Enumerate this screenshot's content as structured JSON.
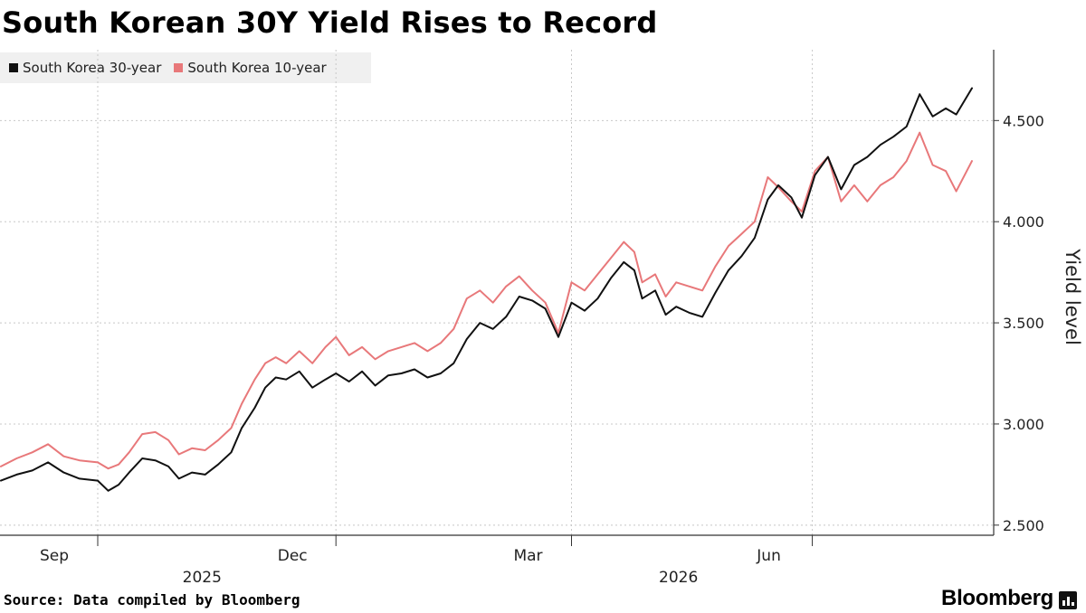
{
  "title": "South Korean 30Y Yield Rises to Record",
  "source": "Source: Data compiled by Bloomberg",
  "brand": "Bloomberg",
  "colors": {
    "s30": "#111111",
    "s10": "#e8787a",
    "grid": "#c8c8c8",
    "axis": "#333333"
  },
  "chart_data": {
    "type": "line",
    "title": "South Korean 30Y Yield Rises to Record",
    "ylabel": "Yield level",
    "xlabel": "",
    "ylim": [
      2.45,
      4.85
    ],
    "yticks": [
      2.5,
      3.0,
      3.5,
      4.0,
      4.5
    ],
    "ytick_labels": [
      "2.500",
      "3.000",
      "3.500",
      "4.000",
      "4.500"
    ],
    "xlim": [
      "2025-07-26",
      "2026-08-01"
    ],
    "month_ticks": [
      "2025-09-01",
      "2025-12-01",
      "2026-03-01",
      "2026-06-01"
    ],
    "month_labels": [
      {
        "date": "2025-09-01",
        "label": "Sep"
      },
      {
        "date": "2025-12-01",
        "label": "Dec"
      },
      {
        "date": "2026-03-01",
        "label": "Mar"
      },
      {
        "date": "2026-06-01",
        "label": "Jun"
      }
    ],
    "year_labels": [
      {
        "date": "2025-10-15",
        "label": "2025"
      },
      {
        "date": "2026-04-15",
        "label": "2026"
      }
    ],
    "legend_position": "top-left",
    "grid": true,
    "series": [
      {
        "name": "South Korea 30-year",
        "points": [
          [
            "2025-07-26",
            2.72
          ],
          [
            "2025-08-01",
            2.75
          ],
          [
            "2025-08-07",
            2.77
          ],
          [
            "2025-08-13",
            2.81
          ],
          [
            "2025-08-19",
            2.76
          ],
          [
            "2025-08-25",
            2.73
          ],
          [
            "2025-09-01",
            2.72
          ],
          [
            "2025-09-05",
            2.67
          ],
          [
            "2025-09-09",
            2.7
          ],
          [
            "2025-09-13",
            2.76
          ],
          [
            "2025-09-18",
            2.83
          ],
          [
            "2025-09-23",
            2.82
          ],
          [
            "2025-09-28",
            2.79
          ],
          [
            "2025-10-02",
            2.73
          ],
          [
            "2025-10-07",
            2.76
          ],
          [
            "2025-10-12",
            2.75
          ],
          [
            "2025-10-17",
            2.8
          ],
          [
            "2025-10-22",
            2.86
          ],
          [
            "2025-10-26",
            2.98
          ],
          [
            "2025-10-31",
            3.08
          ],
          [
            "2025-11-04",
            3.18
          ],
          [
            "2025-11-08",
            3.23
          ],
          [
            "2025-11-12",
            3.22
          ],
          [
            "2025-11-17",
            3.26
          ],
          [
            "2025-11-22",
            3.18
          ],
          [
            "2025-11-27",
            3.22
          ],
          [
            "2025-12-01",
            3.25
          ],
          [
            "2025-12-06",
            3.21
          ],
          [
            "2025-12-11",
            3.26
          ],
          [
            "2025-12-16",
            3.19
          ],
          [
            "2025-12-21",
            3.24
          ],
          [
            "2025-12-26",
            3.25
          ],
          [
            "2025-12-31",
            3.27
          ],
          [
            "2026-01-05",
            3.23
          ],
          [
            "2026-01-10",
            3.25
          ],
          [
            "2026-01-15",
            3.3
          ],
          [
            "2026-01-20",
            3.42
          ],
          [
            "2026-01-25",
            3.5
          ],
          [
            "2026-01-30",
            3.47
          ],
          [
            "2026-02-04",
            3.53
          ],
          [
            "2026-02-09",
            3.63
          ],
          [
            "2026-02-14",
            3.61
          ],
          [
            "2026-02-19",
            3.57
          ],
          [
            "2026-02-24",
            3.43
          ],
          [
            "2026-03-01",
            3.6
          ],
          [
            "2026-03-06",
            3.56
          ],
          [
            "2026-03-11",
            3.62
          ],
          [
            "2026-03-16",
            3.72
          ],
          [
            "2026-03-21",
            3.8
          ],
          [
            "2026-03-25",
            3.76
          ],
          [
            "2026-03-28",
            3.62
          ],
          [
            "2026-04-02",
            3.66
          ],
          [
            "2026-04-06",
            3.54
          ],
          [
            "2026-04-10",
            3.58
          ],
          [
            "2026-04-15",
            3.55
          ],
          [
            "2026-04-20",
            3.53
          ],
          [
            "2026-04-25",
            3.65
          ],
          [
            "2026-04-30",
            3.76
          ],
          [
            "2026-05-05",
            3.83
          ],
          [
            "2026-05-10",
            3.92
          ],
          [
            "2026-05-15",
            4.11
          ],
          [
            "2026-05-19",
            4.18
          ],
          [
            "2026-05-24",
            4.12
          ],
          [
            "2026-05-28",
            4.02
          ],
          [
            "2026-06-02",
            4.23
          ],
          [
            "2026-06-07",
            4.32
          ],
          [
            "2026-06-12",
            4.16
          ],
          [
            "2026-06-17",
            4.28
          ],
          [
            "2026-06-22",
            4.32
          ],
          [
            "2026-06-27",
            4.38
          ],
          [
            "2026-07-02",
            4.42
          ],
          [
            "2026-07-07",
            4.47
          ],
          [
            "2026-07-12",
            4.63
          ],
          [
            "2026-07-17",
            4.52
          ],
          [
            "2026-07-22",
            4.56
          ],
          [
            "2026-07-26",
            4.53
          ],
          [
            "2026-08-01",
            4.66
          ]
        ]
      },
      {
        "name": "South Korea 10-year",
        "points": [
          [
            "2025-07-26",
            2.79
          ],
          [
            "2025-08-01",
            2.83
          ],
          [
            "2025-08-07",
            2.86
          ],
          [
            "2025-08-13",
            2.9
          ],
          [
            "2025-08-19",
            2.84
          ],
          [
            "2025-08-25",
            2.82
          ],
          [
            "2025-09-01",
            2.81
          ],
          [
            "2025-09-05",
            2.78
          ],
          [
            "2025-09-09",
            2.8
          ],
          [
            "2025-09-13",
            2.86
          ],
          [
            "2025-09-18",
            2.95
          ],
          [
            "2025-09-23",
            2.96
          ],
          [
            "2025-09-28",
            2.92
          ],
          [
            "2025-10-02",
            2.85
          ],
          [
            "2025-10-07",
            2.88
          ],
          [
            "2025-10-12",
            2.87
          ],
          [
            "2025-10-17",
            2.92
          ],
          [
            "2025-10-22",
            2.98
          ],
          [
            "2025-10-26",
            3.1
          ],
          [
            "2025-10-31",
            3.22
          ],
          [
            "2025-11-04",
            3.3
          ],
          [
            "2025-11-08",
            3.33
          ],
          [
            "2025-11-12",
            3.3
          ],
          [
            "2025-11-17",
            3.36
          ],
          [
            "2025-11-22",
            3.3
          ],
          [
            "2025-11-27",
            3.38
          ],
          [
            "2025-12-01",
            3.43
          ],
          [
            "2025-12-06",
            3.34
          ],
          [
            "2025-12-11",
            3.38
          ],
          [
            "2025-12-16",
            3.32
          ],
          [
            "2025-12-21",
            3.36
          ],
          [
            "2025-12-26",
            3.38
          ],
          [
            "2025-12-31",
            3.4
          ],
          [
            "2026-01-05",
            3.36
          ],
          [
            "2026-01-10",
            3.4
          ],
          [
            "2026-01-15",
            3.47
          ],
          [
            "2026-01-20",
            3.62
          ],
          [
            "2026-01-25",
            3.66
          ],
          [
            "2026-01-30",
            3.6
          ],
          [
            "2026-02-04",
            3.68
          ],
          [
            "2026-02-09",
            3.73
          ],
          [
            "2026-02-14",
            3.66
          ],
          [
            "2026-02-19",
            3.6
          ],
          [
            "2026-02-24",
            3.45
          ],
          [
            "2026-03-01",
            3.7
          ],
          [
            "2026-03-06",
            3.66
          ],
          [
            "2026-03-11",
            3.74
          ],
          [
            "2026-03-16",
            3.82
          ],
          [
            "2026-03-21",
            3.9
          ],
          [
            "2026-03-25",
            3.85
          ],
          [
            "2026-03-28",
            3.7
          ],
          [
            "2026-04-02",
            3.74
          ],
          [
            "2026-04-06",
            3.63
          ],
          [
            "2026-04-10",
            3.7
          ],
          [
            "2026-04-15",
            3.68
          ],
          [
            "2026-04-20",
            3.66
          ],
          [
            "2026-04-25",
            3.78
          ],
          [
            "2026-04-30",
            3.88
          ],
          [
            "2026-05-05",
            3.94
          ],
          [
            "2026-05-10",
            4.0
          ],
          [
            "2026-05-15",
            4.22
          ],
          [
            "2026-05-19",
            4.17
          ],
          [
            "2026-05-24",
            4.1
          ],
          [
            "2026-05-28",
            4.05
          ],
          [
            "2026-06-02",
            4.25
          ],
          [
            "2026-06-07",
            4.32
          ],
          [
            "2026-06-12",
            4.1
          ],
          [
            "2026-06-17",
            4.18
          ],
          [
            "2026-06-22",
            4.1
          ],
          [
            "2026-06-27",
            4.18
          ],
          [
            "2026-07-02",
            4.22
          ],
          [
            "2026-07-07",
            4.3
          ],
          [
            "2026-07-12",
            4.44
          ],
          [
            "2026-07-17",
            4.28
          ],
          [
            "2026-07-22",
            4.25
          ],
          [
            "2026-07-26",
            4.15
          ],
          [
            "2026-08-01",
            4.3
          ]
        ]
      }
    ]
  }
}
